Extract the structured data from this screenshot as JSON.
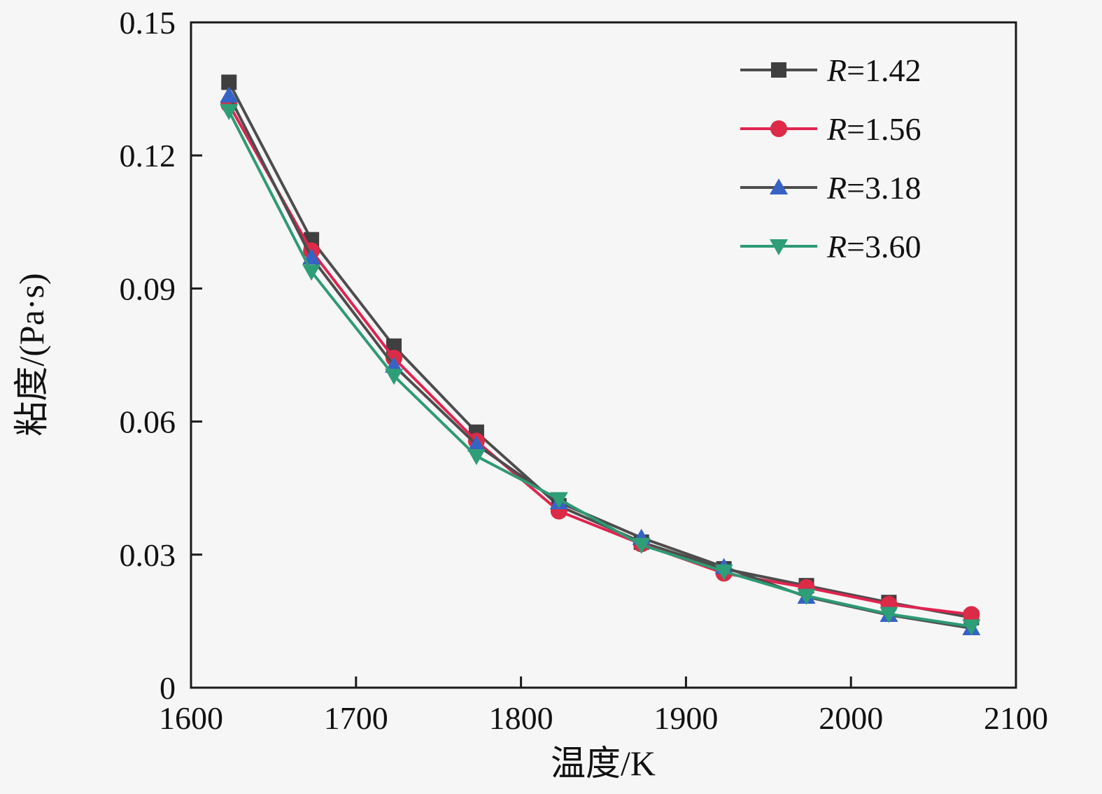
{
  "figure": {
    "background": "#f6f6f6",
    "frame_color": "#1a1a1a",
    "text_color": "#111111",
    "tick_length": 16,
    "frame_width": 3
  },
  "chart_data": {
    "type": "line",
    "title": "",
    "xlabel": "温度/K",
    "ylabel": "粘度/(Pa·s)",
    "xlim": [
      1600,
      2100
    ],
    "ylim": [
      0,
      0.15
    ],
    "grid": false,
    "xticks": {
      "values": [
        1600,
        1700,
        1800,
        1900,
        2000,
        2100
      ],
      "labels": [
        "1600",
        "1700",
        "1800",
        "1900",
        "2000",
        "2100"
      ]
    },
    "yticks": {
      "values": [
        0,
        0.03,
        0.06,
        0.09,
        0.12,
        0.15
      ],
      "labels": [
        "0",
        "0.03",
        "0.06",
        "0.09",
        "0.12",
        "0.15"
      ]
    },
    "x": [
      1623,
      1673,
      1723,
      1773,
      1823,
      1873,
      1923,
      1973,
      2023,
      2073
    ],
    "series": [
      {
        "name": "R=1.42",
        "label_prefix": "R",
        "label_suffix": "=1.42",
        "marker": "square",
        "marker_icon": "square-marker-icon",
        "marker_color": "#3f3f3f",
        "line_color": "#4d4d4d",
        "values": [
          0.1365,
          0.101,
          0.077,
          0.0576,
          0.041,
          0.0328,
          0.0268,
          0.023,
          0.0192,
          0.0158
        ]
      },
      {
        "name": "R=1.56",
        "label_prefix": "R",
        "label_suffix": "=1.56",
        "marker": "circle",
        "marker_icon": "circle-marker-icon",
        "marker_color": "#dc2b47",
        "line_color": "#e02450",
        "values": [
          0.1315,
          0.0985,
          0.0743,
          0.0556,
          0.0398,
          0.0324,
          0.0258,
          0.0226,
          0.0188,
          0.0165
        ]
      },
      {
        "name": "R=3.18",
        "label_prefix": "R",
        "label_suffix": "=3.18",
        "marker": "triangle-up",
        "marker_icon": "triangle-up-marker-icon",
        "marker_color": "#3663c5",
        "line_color": "#4d4d4d",
        "values": [
          0.1335,
          0.097,
          0.0726,
          0.0548,
          0.0418,
          0.0338,
          0.0272,
          0.0205,
          0.0164,
          0.0134
        ]
      },
      {
        "name": "R=3.60",
        "label_prefix": "R",
        "label_suffix": "=3.60",
        "marker": "triangle-down",
        "marker_icon": "triangle-down-marker-icon",
        "marker_color": "#2e9e78",
        "line_color": "#2f9a74",
        "values": [
          0.13,
          0.0938,
          0.0703,
          0.0522,
          0.0425,
          0.0322,
          0.0262,
          0.0207,
          0.0166,
          0.0138
        ]
      }
    ],
    "legend": {
      "position": "top-right-inside",
      "items": [
        "R=1.42",
        "R=1.56",
        "R=3.18",
        "R=3.60"
      ]
    }
  }
}
